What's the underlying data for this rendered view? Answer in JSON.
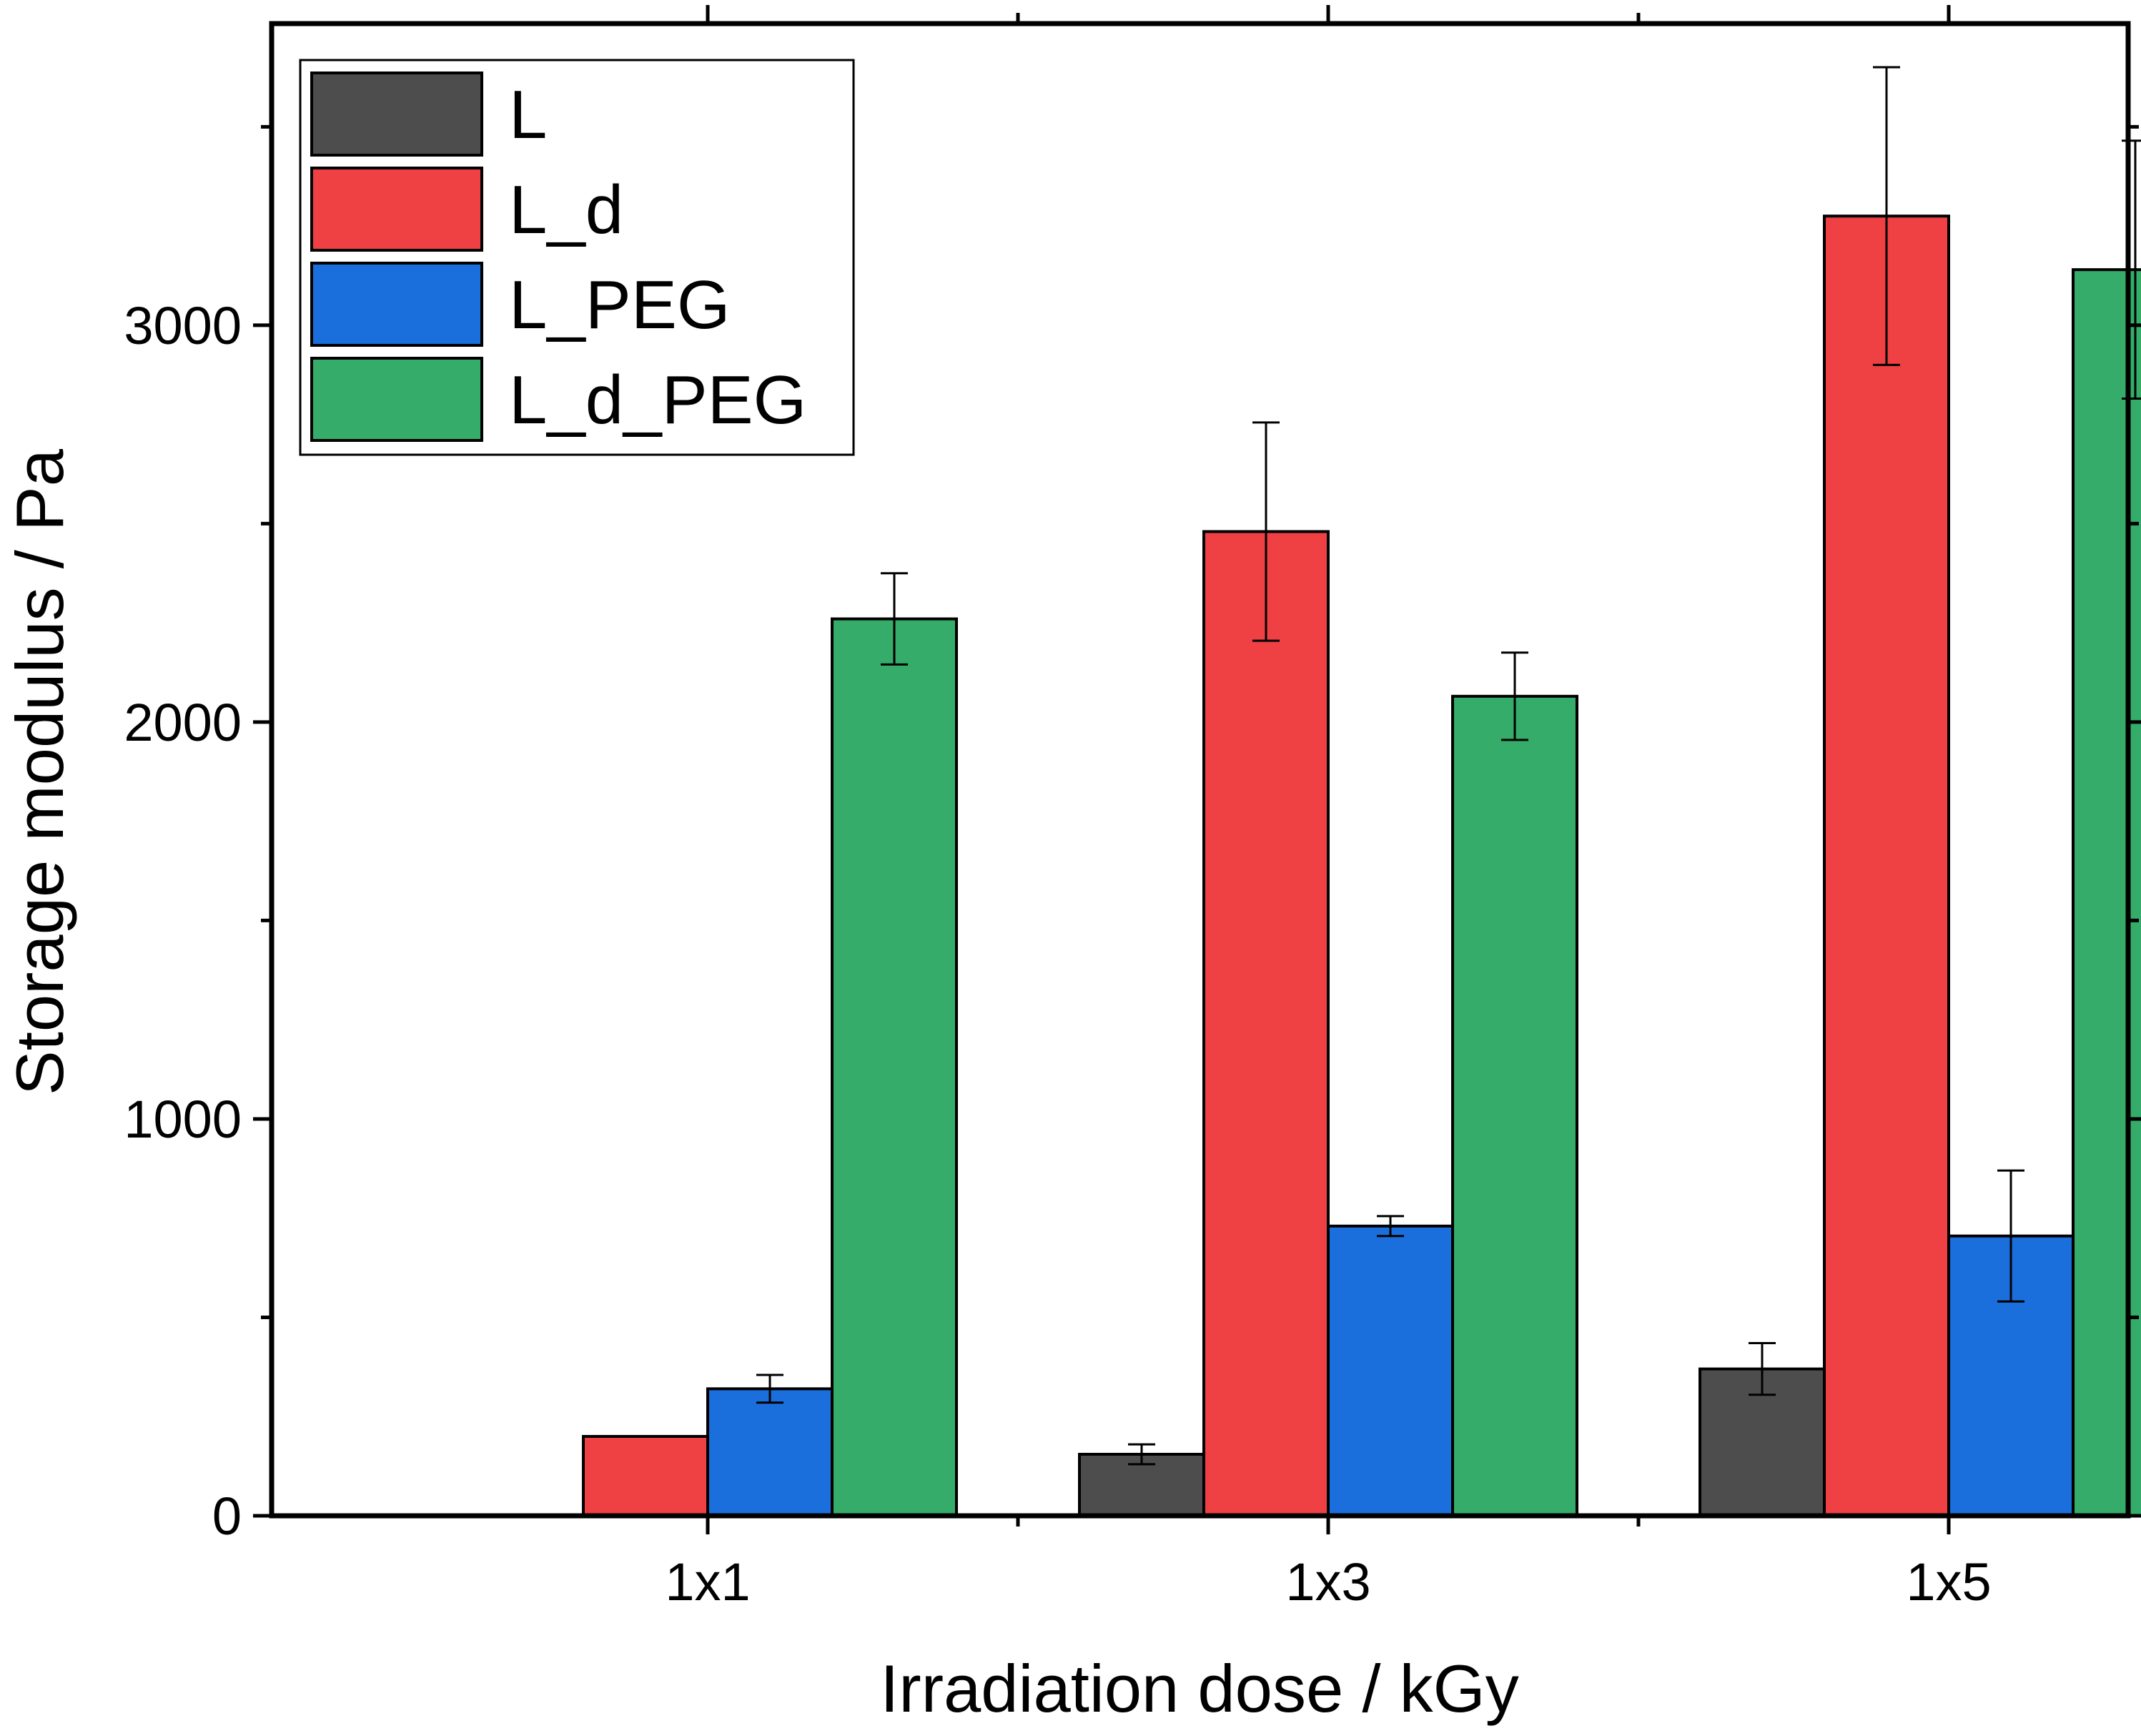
{
  "chart_data": {
    "type": "bar",
    "title": "",
    "xlabel": "Irradiation dose / kGy",
    "ylabel": "Storage modulus / Pa",
    "ylim": [
      0,
      3760
    ],
    "yticks": [
      0,
      1000,
      2000,
      3000
    ],
    "minor_yticks": [
      500,
      1500,
      2500,
      3500
    ],
    "categories": [
      "1x1",
      "1x3",
      "1x5"
    ],
    "legend_position": "top-left",
    "series": [
      {
        "name": "L",
        "color": "#4d4d4d",
        "values": [
          0,
          155,
          370
        ],
        "errors": [
          0,
          25,
          65
        ]
      },
      {
        "name": "L_d",
        "color": "#ef4043",
        "values": [
          200,
          2480,
          3275
        ],
        "errors": [
          0,
          275,
          375
        ]
      },
      {
        "name": "L_PEG",
        "color": "#1a6fdc",
        "values": [
          320,
          730,
          705
        ],
        "errors": [
          35,
          25,
          165
        ]
      },
      {
        "name": "L_d_PEG",
        "color": "#35ac69",
        "values": [
          2260,
          2065,
          3140
        ],
        "errors": [
          115,
          110,
          325
        ]
      }
    ]
  }
}
